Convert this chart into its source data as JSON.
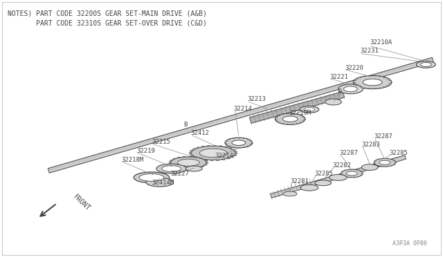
{
  "bg_color": "#ffffff",
  "border_color": "#cccccc",
  "line_color": "#444444",
  "text_color": "#444444",
  "fill_light": "#e8e8e8",
  "fill_mid": "#cccccc",
  "fill_dark": "#aaaaaa",
  "title_lines": [
    "NOTES) PART CODE 32200S GEAR SET-MAIN DRIVE (A&B)",
    "       PART CODE 32310S GEAR SET-OVER DRIVE (C&D)"
  ],
  "watermark": "A3P3A 0P86",
  "fig_width": 6.4,
  "fig_height": 3.72,
  "dpi": 100
}
